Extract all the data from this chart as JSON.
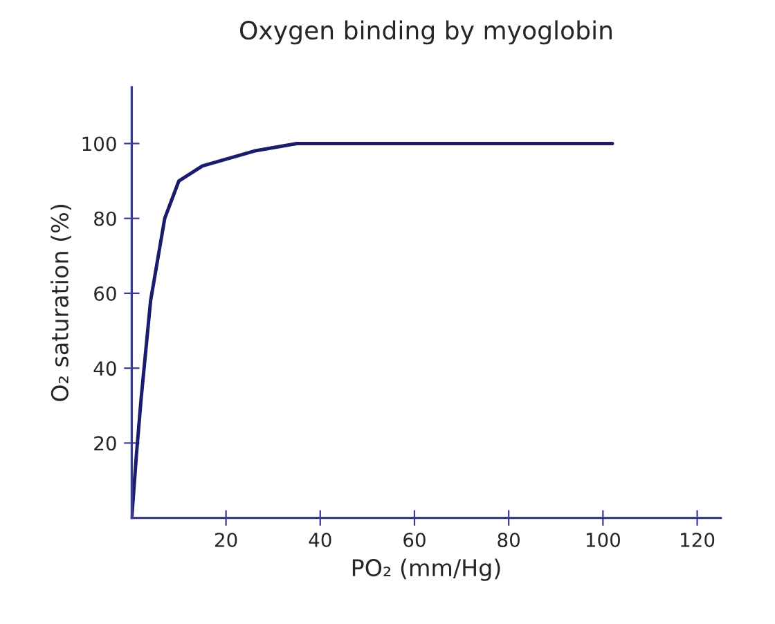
{
  "chart_data": {
    "type": "line",
    "title": "Oxygen binding by myoglobin",
    "xlabel": "PO₂ (mm/Hg)",
    "ylabel": "O₂ saturation (%)",
    "xlim": [
      0,
      125
    ],
    "ylim": [
      0,
      115
    ],
    "xticks": [
      20,
      40,
      60,
      80,
      100,
      120
    ],
    "yticks": [
      20,
      40,
      60,
      80,
      100
    ],
    "grid": false,
    "marker": "none",
    "line_style": "solid",
    "series": [
      {
        "color": "#1c1c6e",
        "x": [
          0,
          1,
          2,
          4,
          7,
          10,
          15,
          26,
          35,
          78,
          102
        ],
        "values": [
          0,
          17,
          32,
          58,
          80,
          90,
          94,
          98,
          100,
          100,
          100
        ]
      }
    ]
  }
}
